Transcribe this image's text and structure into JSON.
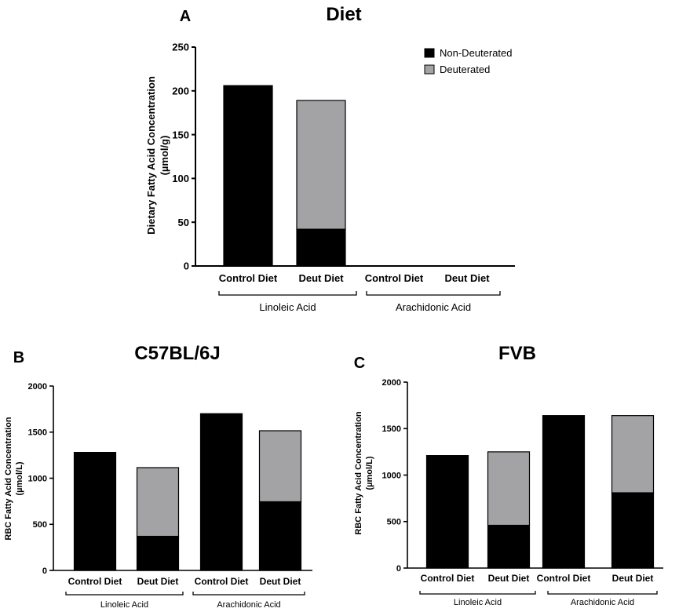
{
  "colors": {
    "non_deuterated": "#000000",
    "deuterated": "#a3a3a6",
    "axis": "#000000",
    "background": "#ffffff"
  },
  "legend": {
    "non_deuterated": "Non-Deuterated",
    "deuterated": "Deuterated"
  },
  "chart_data": [
    {
      "id": "A",
      "panel_letter": "A",
      "type": "bar",
      "stacked": true,
      "title": "Diet",
      "ylabel_line1": "Dietary Fatty Acid Concentration",
      "ylabel_line2": "(µmol/g)",
      "ylim": [
        0,
        250
      ],
      "yticks": [
        "0",
        "50",
        "100",
        "150",
        "200",
        "250"
      ],
      "categories": [
        "Control Diet",
        "Deut Diet",
        "Control Diet",
        "Deut Diet"
      ],
      "groups": [
        {
          "label": "Linoleic Acid",
          "categories": [
            0,
            1
          ]
        },
        {
          "label": "Arachidonic Acid",
          "categories": [
            2,
            3
          ]
        }
      ],
      "series": [
        {
          "name": "Non-Deuterated",
          "values": [
            206,
            42,
            0,
            0
          ]
        },
        {
          "name": "Deuterated",
          "values": [
            0,
            147,
            0,
            0
          ]
        }
      ],
      "legend_position": "top-right"
    },
    {
      "id": "B",
      "panel_letter": "B",
      "type": "bar",
      "stacked": true,
      "title": "C57BL/6J",
      "ylabel_line1": "RBC Fatty Acid Concentration",
      "ylabel_line2": "(µmol/L)",
      "ylim": [
        0,
        2000
      ],
      "yticks": [
        "0",
        "500",
        "1000",
        "1500",
        "2000"
      ],
      "categories": [
        "Control Diet",
        "Deut Diet",
        "Control Diet",
        "Deut Diet"
      ],
      "groups": [
        {
          "label": "Linoleic Acid",
          "categories": [
            0,
            1
          ]
        },
        {
          "label": "Arachidonic Acid",
          "categories": [
            2,
            3
          ]
        }
      ],
      "series": [
        {
          "name": "Non-Deuterated",
          "values": [
            1280,
            370,
            1700,
            745
          ]
        },
        {
          "name": "Deuterated",
          "values": [
            0,
            745,
            0,
            770
          ]
        }
      ]
    },
    {
      "id": "C",
      "panel_letter": "C",
      "type": "bar",
      "stacked": true,
      "title": "FVB",
      "ylabel_line1": "RBC Fatty Acid Concentration",
      "ylabel_line2": "(µmol/L)",
      "ylim": [
        0,
        2000
      ],
      "yticks": [
        "0",
        "500",
        "1000",
        "1500",
        "2000"
      ],
      "categories": [
        "Control Diet",
        "Deut Diet",
        "Control Diet",
        "Deut Diet"
      ],
      "groups": [
        {
          "label": "Linoleic Acid",
          "categories": [
            0,
            1
          ]
        },
        {
          "label": "Arachidonic Acid",
          "categories": [
            2,
            3
          ]
        }
      ],
      "series": [
        {
          "name": "Non-Deuterated",
          "values": [
            1210,
            460,
            1640,
            810
          ]
        },
        {
          "name": "Deuterated",
          "values": [
            0,
            790,
            0,
            830
          ]
        }
      ]
    }
  ]
}
